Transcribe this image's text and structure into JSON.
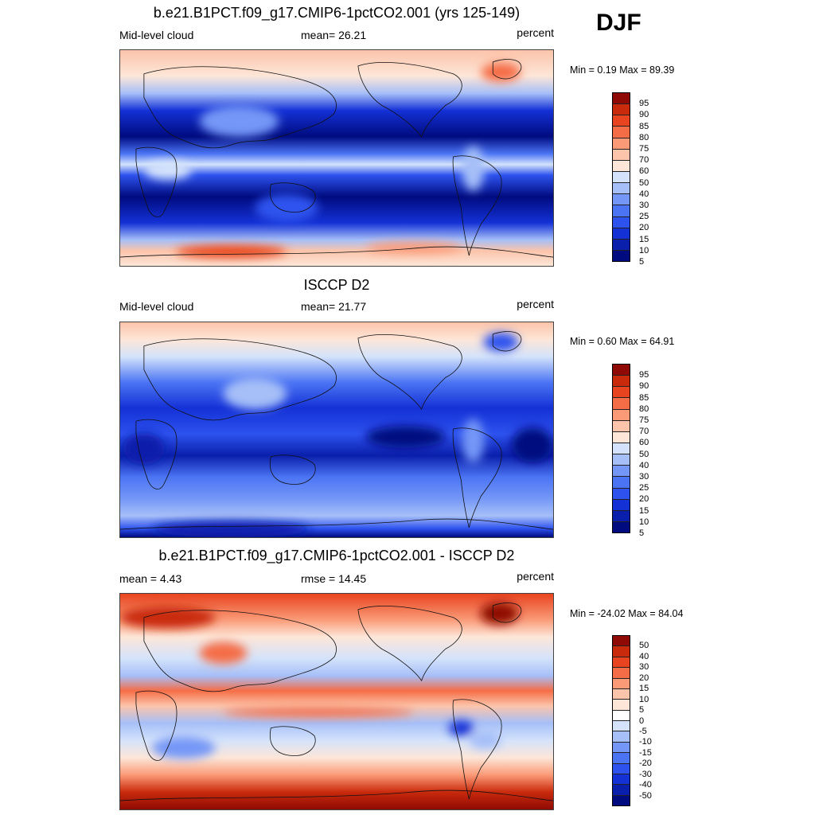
{
  "season": "DJF",
  "panels": [
    {
      "title": "b.e21.B1PCT.f09_g17.CMIP6-1pctCO2.001 (yrs 125-149)",
      "left_label": "Mid-level cloud",
      "center_label": "mean=  26.21",
      "right_label": "percent",
      "minmax": "Min =   0.19 Max =  89.39",
      "colorbar_colors": [
        "#000b7f",
        "#0a1fab",
        "#1431d6",
        "#2d52ee",
        "#4b74f4",
        "#7497f7",
        "#a6bff8",
        "#d4e3fb",
        "#fde6d8",
        "#fcc4aa",
        "#fa9a77",
        "#f56d46",
        "#e8441f",
        "#c92a0c",
        "#8f0a04"
      ],
      "colorbar_ticks": [
        "95",
        "90",
        "85",
        "80",
        "75",
        "70",
        "60",
        "50",
        "40",
        "30",
        "25",
        "20",
        "15",
        "10",
        "5"
      ]
    },
    {
      "title": "ISCCP D2",
      "left_label": "Mid-level cloud",
      "center_label": "mean=  21.77",
      "right_label": "percent",
      "minmax": "Min =   0.60 Max =  64.91",
      "colorbar_colors": [
        "#000b7f",
        "#0a1fab",
        "#1431d6",
        "#2d52ee",
        "#4b74f4",
        "#7497f7",
        "#a6bff8",
        "#d4e3fb",
        "#fde6d8",
        "#fcc4aa",
        "#fa9a77",
        "#f56d46",
        "#e8441f",
        "#c92a0c",
        "#8f0a04"
      ],
      "colorbar_ticks": [
        "95",
        "90",
        "85",
        "80",
        "75",
        "70",
        "60",
        "50",
        "40",
        "30",
        "25",
        "20",
        "15",
        "10",
        "5"
      ]
    },
    {
      "title": "b.e21.B1PCT.f09_g17.CMIP6-1pctCO2.001 - ISCCP D2",
      "left_label": "mean =   4.43",
      "center_label": "rmse =  14.45",
      "right_label": "percent",
      "minmax": "Min = -24.02 Max =  84.04",
      "colorbar_colors": [
        "#000b7f",
        "#0a1fab",
        "#1431d6",
        "#2d52ee",
        "#4b74f4",
        "#7497f7",
        "#a6bff8",
        "#d4e3fb",
        "#ffffff",
        "#fde6d8",
        "#fcc4aa",
        "#fa9a77",
        "#f56d46",
        "#e8441f",
        "#c92a0c",
        "#8f0a04"
      ],
      "colorbar_ticks": [
        "50",
        "40",
        "30",
        "20",
        "15",
        "10",
        "5",
        "0",
        "-5",
        "-10",
        "-15",
        "-20",
        "-30",
        "-40",
        "-50"
      ]
    }
  ]
}
